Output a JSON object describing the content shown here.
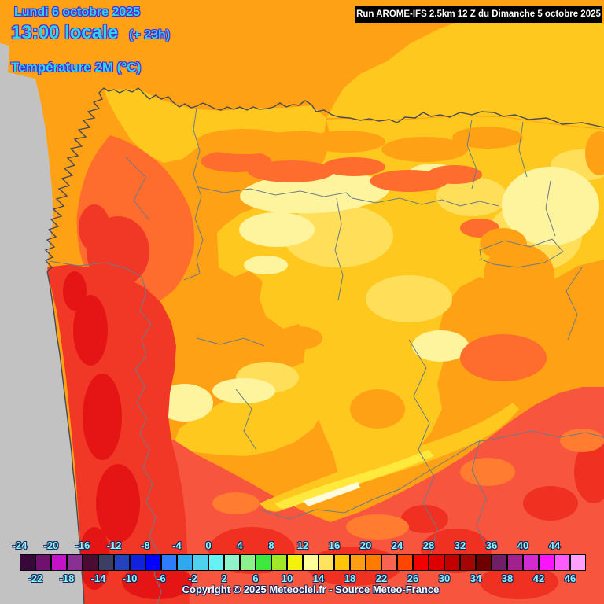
{
  "title_block": {
    "date": "Lundi 6 octobre 2025",
    "time": "13:00 locale",
    "time_offset": "(+ 23h)",
    "variable": "Température 2M (°C)"
  },
  "run_banner": {
    "text": "Run AROME-IFS 2.5km 12 Z du Dimanche 5 octobre 2025"
  },
  "footer": {
    "copyright": "Copyright © 2025 Meteociel.fr - Source Meteo-France"
  },
  "legend": {
    "unit": "°C",
    "top_labels": [
      "-24",
      "-20",
      "-16",
      "-12",
      "-8",
      "-4",
      "0",
      "4",
      "8",
      "12",
      "16",
      "20",
      "24",
      "28",
      "32",
      "36",
      "40",
      "44"
    ],
    "bottom_labels": [
      "-22",
      "-18",
      "-14",
      "-10",
      "-6",
      "-2",
      "2",
      "6",
      "10",
      "14",
      "18",
      "22",
      "26",
      "30",
      "34",
      "38",
      "42",
      "46"
    ],
    "cells": [
      {
        "from": -24,
        "to": -22,
        "color": "#38083A"
      },
      {
        "from": -22,
        "to": -20,
        "color": "#6E1171"
      },
      {
        "from": -20,
        "to": -18,
        "color": "#C312C7"
      },
      {
        "from": -18,
        "to": -16,
        "color": "#8A2F93"
      },
      {
        "from": -16,
        "to": -14,
        "color": "#4A0C33"
      },
      {
        "from": -14,
        "to": -12,
        "color": "#3A3F63"
      },
      {
        "from": -12,
        "to": -10,
        "color": "#2342BB"
      },
      {
        "from": -10,
        "to": -8,
        "color": "#1122DD"
      },
      {
        "from": -8,
        "to": -6,
        "color": "#0202FF"
      },
      {
        "from": -6,
        "to": -4,
        "color": "#2E7CFF"
      },
      {
        "from": -4,
        "to": -2,
        "color": "#2FA8F0"
      },
      {
        "from": -2,
        "to": 0,
        "color": "#4FD2F0"
      },
      {
        "from": 0,
        "to": 2,
        "color": "#66F2F2"
      },
      {
        "from": 2,
        "to": 4,
        "color": "#8FF2C8"
      },
      {
        "from": 4,
        "to": 6,
        "color": "#8CF08C"
      },
      {
        "from": 6,
        "to": 8,
        "color": "#3EE83C"
      },
      {
        "from": 8,
        "to": 10,
        "color": "#A0E828"
      },
      {
        "from": 10,
        "to": 12,
        "color": "#F2F20C"
      },
      {
        "from": 12,
        "to": 14,
        "color": "#FFFF99"
      },
      {
        "from": 14,
        "to": 16,
        "color": "#FFE35C"
      },
      {
        "from": 16,
        "to": 18,
        "color": "#FFC408"
      },
      {
        "from": 18,
        "to": 20,
        "color": "#FF9E14"
      },
      {
        "from": 20,
        "to": 22,
        "color": "#FF7C00"
      },
      {
        "from": 22,
        "to": 24,
        "color": "#F86450"
      },
      {
        "from": 24,
        "to": 26,
        "color": "#FF4500"
      },
      {
        "from": 26,
        "to": 28,
        "color": "#F50000"
      },
      {
        "from": 28,
        "to": 30,
        "color": "#DE0000"
      },
      {
        "from": 30,
        "to": 32,
        "color": "#C20000"
      },
      {
        "from": 32,
        "to": 34,
        "color": "#A40505"
      },
      {
        "from": 34,
        "to": 36,
        "color": "#6E0000"
      },
      {
        "from": 36,
        "to": 38,
        "color": "#701E66"
      },
      {
        "from": 38,
        "to": 40,
        "color": "#A3218F"
      },
      {
        "from": 40,
        "to": 42,
        "color": "#D12BD1"
      },
      {
        "from": 42,
        "to": 44,
        "color": "#FA14FA"
      },
      {
        "from": 44,
        "to": 46,
        "color": "#FF5CFF"
      },
      {
        "from": 46,
        "to": 48,
        "color": "#FFA0FF"
      }
    ]
  },
  "map_colors": {
    "no_data_sea": "#C2C2C2",
    "coastline": "#4A4A55",
    "admin_border": "#6B7B88",
    "base_orange": "#FFA114",
    "gold": "#FFC81E",
    "pale_yellow": "#FFF49E",
    "salmon": "#F8553F",
    "red": "#F13826"
  }
}
